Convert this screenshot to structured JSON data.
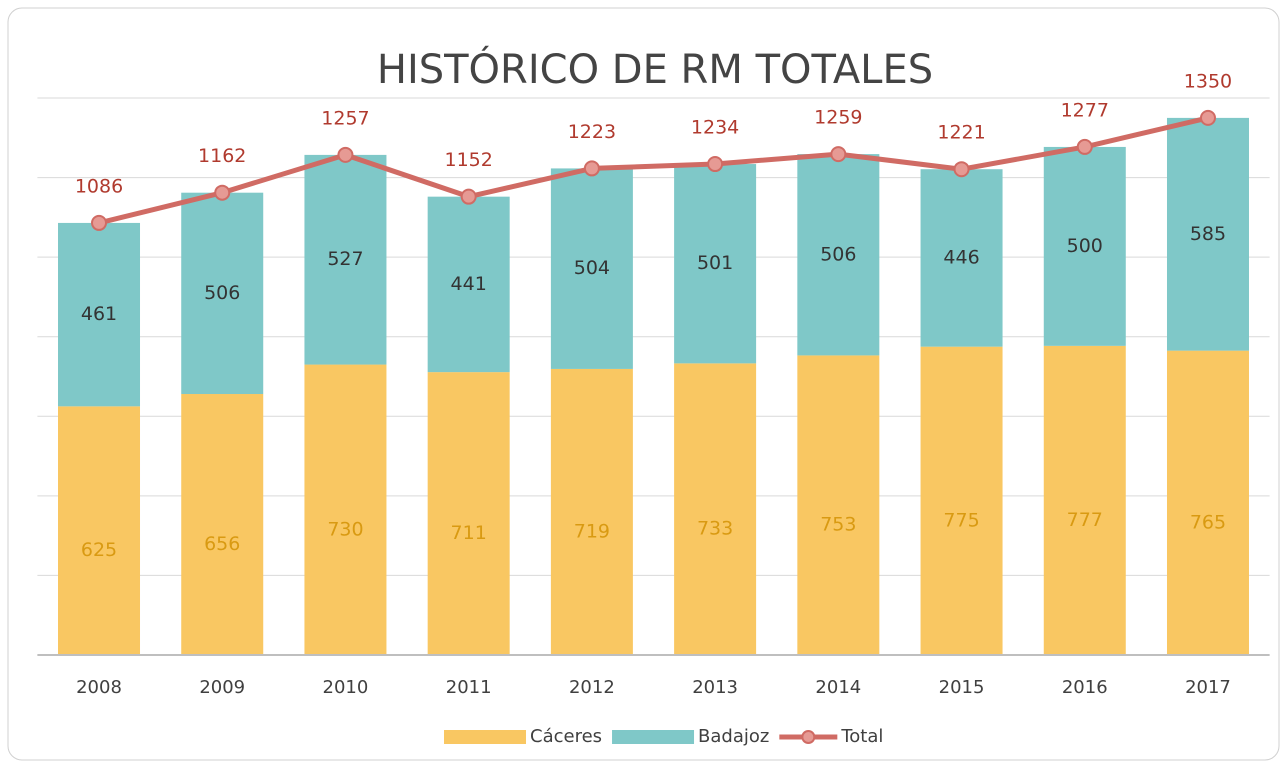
{
  "chart_data": {
    "type": "stacked-bar-line",
    "title": "HISTÓRICO DE RM TOTALES",
    "categories": [
      "2008",
      "2009",
      "2010",
      "2011",
      "2012",
      "2013",
      "2014",
      "2015",
      "2016",
      "2017"
    ],
    "series": [
      {
        "name": "Cáceres",
        "type": "bar",
        "color": "#f9c762",
        "label_color": "#d99a12",
        "values": [
          625,
          656,
          730,
          711,
          719,
          733,
          753,
          775,
          777,
          765
        ]
      },
      {
        "name": "Badajoz",
        "type": "bar",
        "color": "#7fc8c8",
        "label_color": "#333333",
        "values": [
          461,
          506,
          527,
          441,
          504,
          501,
          506,
          446,
          500,
          585
        ]
      },
      {
        "name": "Total",
        "type": "line",
        "color": "#d06b64",
        "label_color": "#b03a2e",
        "values": [
          1086,
          1162,
          1257,
          1152,
          1223,
          1234,
          1259,
          1221,
          1277,
          1350
        ]
      }
    ],
    "ylim": [
      0,
      1400
    ],
    "yticks": [
      0,
      200,
      400,
      600,
      800,
      1000,
      1200,
      1400
    ],
    "grid": true,
    "legend": "bottom"
  }
}
